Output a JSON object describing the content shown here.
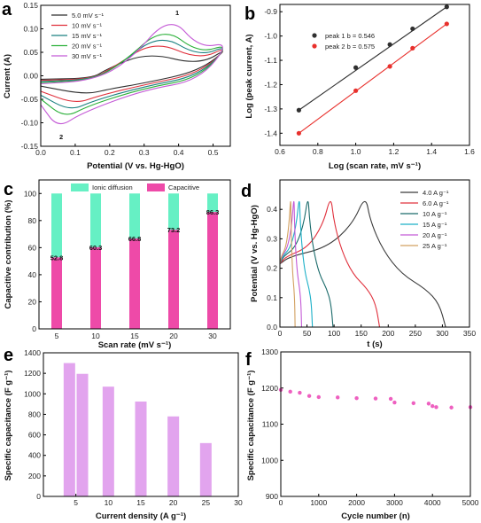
{
  "colors": {
    "cv": [
      "#2d2d2d",
      "#e0303c",
      "#1a8080",
      "#2cb03a",
      "#c45ad6"
    ],
    "gcd": [
      "#3a3a3a",
      "#e0303c",
      "#1a6a6a",
      "#1cb0c8",
      "#c45ad6",
      "#d2a060"
    ],
    "peak1": "#303030",
    "peak2": "#e8302c",
    "ionic": "#66f0c4",
    "capacitive": "#ee4aa8",
    "bar_e": "#e2a4ee",
    "cycle": "#ee60c0"
  },
  "panels": {
    "a": {
      "label": "a",
      "xlabel": "Potential (V vs. Hg-HgO)",
      "ylabel": "Current (A)",
      "xticks": [
        "0.0",
        "0.1",
        "0.2",
        "0.3",
        "0.4",
        "0.5"
      ],
      "yticks": [
        "-0.15",
        "-0.10",
        "-0.05",
        "0.00",
        "0.05",
        "0.10",
        "0.15"
      ],
      "legend": [
        "5.0 mV s⁻¹",
        "10 mV s⁻¹",
        "15 mV s⁻¹",
        "20 mV s⁻¹",
        "30 mV s⁻¹"
      ],
      "ann1": "1",
      "ann2": "2"
    },
    "b": {
      "label": "b",
      "xlabel": "Log (scan rate, mV s⁻¹)",
      "ylabel": "Log (peak current, A)",
      "xticks": [
        "0.6",
        "0.8",
        "1.0",
        "1.2",
        "1.4",
        "1.6"
      ],
      "yticks": [
        "-1.4",
        "-1.3",
        "-1.2",
        "-1.1",
        "-1.0",
        "-0.9"
      ],
      "legend": [
        "peak 1  b = 0.546",
        "peak 2  b = 0.575"
      ]
    },
    "c": {
      "label": "c",
      "xlabel": "Scan rate (mV s⁻¹)",
      "ylabel": "Capacitive contribution (%)",
      "xticks": [
        "5",
        "10",
        "15",
        "20",
        "30"
      ],
      "yticks": [
        "0",
        "20",
        "40",
        "60",
        "80",
        "100"
      ],
      "legend": [
        "Ionic diffusion",
        "Capacitive"
      ],
      "values": [
        "52.8",
        "60.3",
        "66.8",
        "73.2",
        "86.3"
      ]
    },
    "d": {
      "label": "d",
      "xlabel": "t (s)",
      "ylabel": "Potential (V vs. Hg-HgO)",
      "xticks": [
        "0",
        "50",
        "100",
        "150",
        "200",
        "250",
        "300",
        "350"
      ],
      "yticks": [
        "0.0",
        "0.1",
        "0.2",
        "0.3",
        "0.4"
      ],
      "legend": [
        "4.0 A g⁻¹",
        "6.0 A g⁻¹",
        "10 A g⁻¹",
        "15 A g⁻¹",
        "20 A g⁻¹",
        "25 A g⁻¹"
      ]
    },
    "e": {
      "label": "e",
      "xlabel": "Current density (A g⁻¹)",
      "ylabel": "Specific capacitance (F g⁻¹)",
      "xticks": [
        "5",
        "10",
        "15",
        "20",
        "25",
        "30"
      ],
      "yticks": [
        "0",
        "200",
        "400",
        "600",
        "800",
        "1000",
        "1200",
        "1400"
      ]
    },
    "f": {
      "label": "f",
      "xlabel": "Cycle number (n)",
      "ylabel": "Specific capacitance (F g⁻¹)",
      "xticks": [
        "0",
        "1000",
        "2000",
        "3000",
        "4000",
        "5000"
      ],
      "yticks": [
        "900",
        "1000",
        "1100",
        "1200",
        "1300"
      ]
    }
  },
  "chart_data": [
    {
      "panel": "a",
      "type": "line",
      "xlabel": "Potential (V vs. Hg-HgO)",
      "ylabel": "Current (A)",
      "xlim": [
        0.0,
        0.55
      ],
      "ylim": [
        -0.15,
        0.15
      ],
      "series": [
        {
          "name": "5.0 mV s⁻¹",
          "anodic_peak": [
            0.31,
            0.05
          ],
          "cathodic_peak": [
            0.13,
            -0.04
          ]
        },
        {
          "name": "10 mV s⁻¹",
          "anodic_peak": [
            0.33,
            0.075
          ],
          "cathodic_peak": [
            0.1,
            -0.06
          ]
        },
        {
          "name": "15 mV s⁻¹",
          "anodic_peak": [
            0.345,
            0.09
          ],
          "cathodic_peak": [
            0.085,
            -0.075
          ]
        },
        {
          "name": "20 mV s⁻¹",
          "anodic_peak": [
            0.355,
            0.105
          ],
          "cathodic_peak": [
            0.07,
            -0.09
          ]
        },
        {
          "name": "30 mV s⁻¹",
          "anodic_peak": [
            0.375,
            0.13
          ],
          "cathodic_peak": [
            0.05,
            -0.112
          ]
        }
      ]
    },
    {
      "panel": "b",
      "type": "scatter",
      "xlabel": "Log (scan rate, mV s⁻¹)",
      "ylabel": "Log (peak current, A)",
      "xlim": [
        0.6,
        1.6
      ],
      "ylim": [
        -1.45,
        -0.87
      ],
      "x": [
        0.7,
        1.0,
        1.18,
        1.3,
        1.48
      ],
      "series": [
        {
          "name": "peak 1  b = 0.546",
          "values": [
            -1.305,
            -1.13,
            -1.035,
            -0.97,
            -0.88
          ]
        },
        {
          "name": "peak 2  b = 0.575",
          "values": [
            -1.4,
            -1.225,
            -1.125,
            -1.05,
            -0.95
          ]
        }
      ]
    },
    {
      "panel": "c",
      "type": "bar",
      "xlabel": "Scan rate (mV s⁻¹)",
      "ylabel": "Capacitive contribution (%)",
      "ylim": [
        0,
        110
      ],
      "categories": [
        "5",
        "10",
        "15",
        "20",
        "30"
      ],
      "series": [
        {
          "name": "Capacitive",
          "values": [
            52.8,
            60.3,
            66.8,
            73.2,
            86.3
          ]
        },
        {
          "name": "Ionic diffusion",
          "values": [
            47.2,
            39.7,
            33.2,
            26.8,
            13.7
          ]
        }
      ]
    },
    {
      "panel": "d",
      "type": "line",
      "xlabel": "t (s)",
      "ylabel": "Potential (V vs. Hg-HgO)",
      "xlim": [
        0,
        350
      ],
      "ylim": [
        0.0,
        0.5
      ],
      "series": [
        {
          "name": "4.0 A g⁻¹",
          "charge_end": 158,
          "discharge_end": 306
        },
        {
          "name": "6.0 A g⁻¹",
          "charge_end": 94,
          "discharge_end": 184
        },
        {
          "name": "10 A g⁻¹",
          "charge_end": 52,
          "discharge_end": 98
        },
        {
          "name": "15 A g⁻¹",
          "charge_end": 36,
          "discharge_end": 60
        },
        {
          "name": "20 A g⁻¹",
          "charge_end": 26,
          "discharge_end": 40
        },
        {
          "name": "25 A g⁻¹",
          "charge_end": 20,
          "discharge_end": 28
        }
      ]
    },
    {
      "panel": "e",
      "type": "bar",
      "xlabel": "Current density (A g⁻¹)",
      "ylabel": "Specific capacitance (F g⁻¹)",
      "xlim": [
        0,
        30
      ],
      "ylim": [
        0,
        1400
      ],
      "x": [
        4,
        6,
        10,
        15,
        20,
        25
      ],
      "values": [
        1300,
        1195,
        1070,
        925,
        780,
        520
      ]
    },
    {
      "panel": "f",
      "type": "scatter",
      "xlabel": "Cycle number (n)",
      "ylabel": "Specific capacitance (F g⁻¹)",
      "xlim": [
        0,
        5000
      ],
      "ylim": [
        900,
        1300
      ],
      "x": [
        0,
        250,
        500,
        750,
        1000,
        1500,
        2000,
        2500,
        2900,
        3000,
        3500,
        3900,
        4000,
        4100,
        4500,
        5000
      ],
      "values": [
        1195,
        1190,
        1187,
        1178,
        1175,
        1174,
        1172,
        1171,
        1170,
        1160,
        1158,
        1157,
        1150,
        1147,
        1146,
        1147
      ]
    }
  ]
}
